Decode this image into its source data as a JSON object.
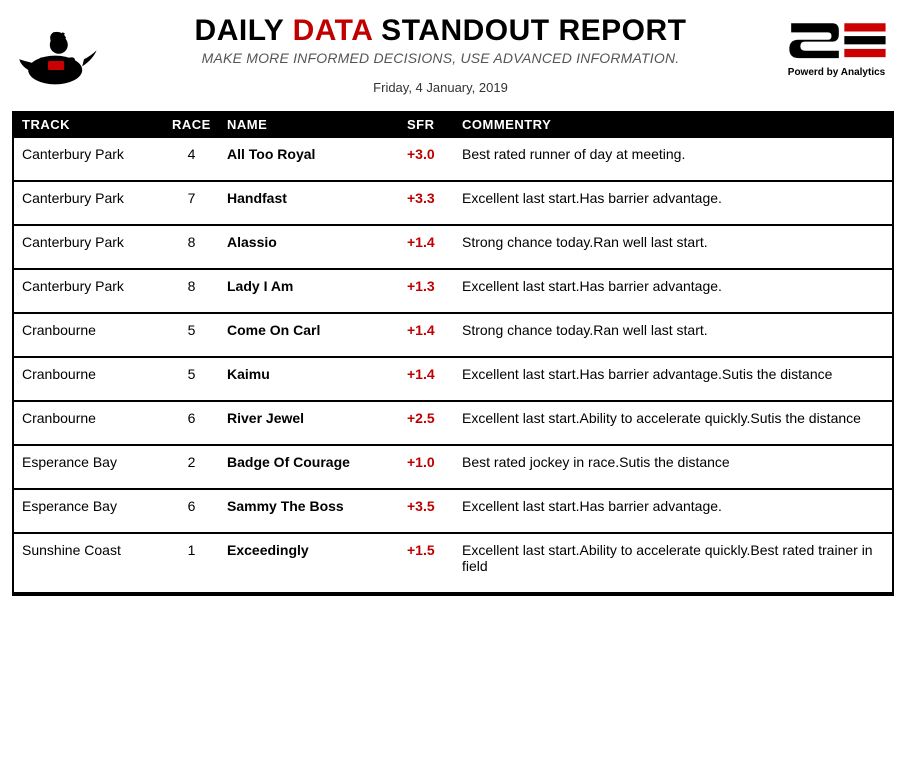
{
  "header": {
    "title_pre": "DAILY ",
    "title_accent": "DATA",
    "title_post": " STANDOUT REPORT",
    "subtitle": "MAKE MORE INFORMED DECISIONS, USE ADVANCED INFORMATION.",
    "date": "Friday, 4 January, 2019",
    "right_caption": "Powerd by Analytics"
  },
  "columns": {
    "track": "TRACK",
    "race": "RACE",
    "name": "NAME",
    "sfr": "SFR",
    "commentry": "COMMENTRY"
  },
  "colors": {
    "accent": "#c00000",
    "header_bg": "#000000",
    "header_fg": "#ffffff",
    "text": "#000000"
  },
  "rows": [
    {
      "track": "Canterbury Park",
      "race": "4",
      "name": "All Too Royal",
      "sfr": "+3.0",
      "comm": "Best rated runner of day at meeting."
    },
    {
      "track": "Canterbury Park",
      "race": "7",
      "name": "Handfast",
      "sfr": "+3.3",
      "comm": "Excellent last start.Has barrier advantage."
    },
    {
      "track": "Canterbury Park",
      "race": "8",
      "name": "Alassio",
      "sfr": "+1.4",
      "comm": "Strong chance today.Ran well last start."
    },
    {
      "track": "Canterbury Park",
      "race": "8",
      "name": "Lady I Am",
      "sfr": "+1.3",
      "comm": "Excellent last start.Has barrier advantage."
    },
    {
      "track": "Cranbourne",
      "race": "5",
      "name": "Come On Carl",
      "sfr": "+1.4",
      "comm": "Strong chance today.Ran well last start."
    },
    {
      "track": "Cranbourne",
      "race": "5",
      "name": "Kaimu",
      "sfr": "+1.4",
      "comm": "Excellent last start.Has barrier advantage.Sutis the distance"
    },
    {
      "track": "Cranbourne",
      "race": "6",
      "name": "River Jewel",
      "sfr": "+2.5",
      "comm": "Excellent last start.Ability to accelerate quickly.Sutis the distance"
    },
    {
      "track": "Esperance Bay",
      "race": "2",
      "name": "Badge Of Courage",
      "sfr": "+1.0",
      "comm": "Best rated jockey in race.Sutis the distance"
    },
    {
      "track": "Esperance Bay",
      "race": "6",
      "name": "Sammy The Boss",
      "sfr": "+3.5",
      "comm": "Excellent last start.Has barrier advantage."
    },
    {
      "track": "Sunshine Coast",
      "race": "1",
      "name": "Exceedingly",
      "sfr": "+1.5",
      "comm": "Excellent last start.Ability to accelerate quickly.Best rated trainer in field"
    }
  ]
}
